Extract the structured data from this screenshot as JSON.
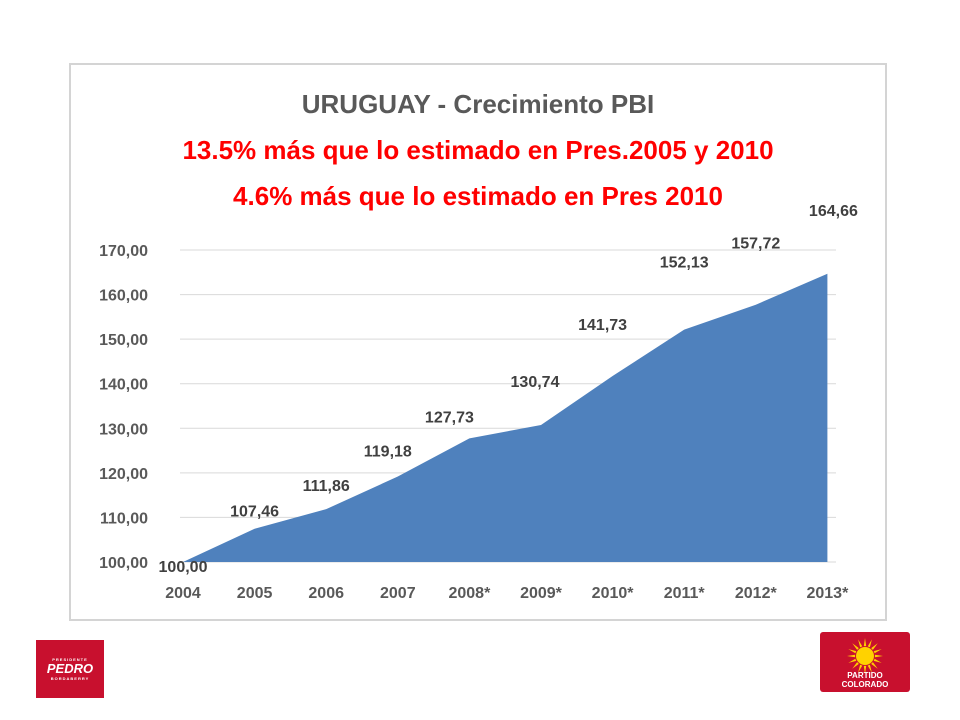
{
  "chart_data": {
    "type": "area",
    "title": "URUGUAY - Crecimiento PBI",
    "subtitle_lines": [
      "13.5% más que lo estimado en Pres.2005 y 2010",
      "4.6% más que lo estimado en Pres 2010"
    ],
    "categories": [
      "2004",
      "2005",
      "2006",
      "2007",
      "2008*",
      "2009*",
      "2010*",
      "2011*",
      "2012*",
      "2013*"
    ],
    "values": [
      100.0,
      107.46,
      111.86,
      119.18,
      127.73,
      130.74,
      141.73,
      152.13,
      157.72,
      164.66
    ],
    "data_labels": [
      "100,00",
      "107,46",
      "111,86",
      "119,18",
      "127,73",
      "130,74",
      "141,73",
      "152,13",
      "157,72",
      "164,66"
    ],
    "y_ticks": [
      "100,00",
      "110,00",
      "120,00",
      "130,00",
      "140,00",
      "150,00",
      "160,00",
      "170,00"
    ],
    "ylim": [
      100,
      170
    ],
    "grid": true,
    "legend": "none",
    "color": "#4f81bd"
  },
  "logos": {
    "left": {
      "top_text": "PRESIDENTE",
      "main_text": "PEDRO",
      "bottom_text": "BORDABERRY"
    },
    "right": {
      "line1": "PARTIDO",
      "line2": "COLORADO"
    }
  }
}
